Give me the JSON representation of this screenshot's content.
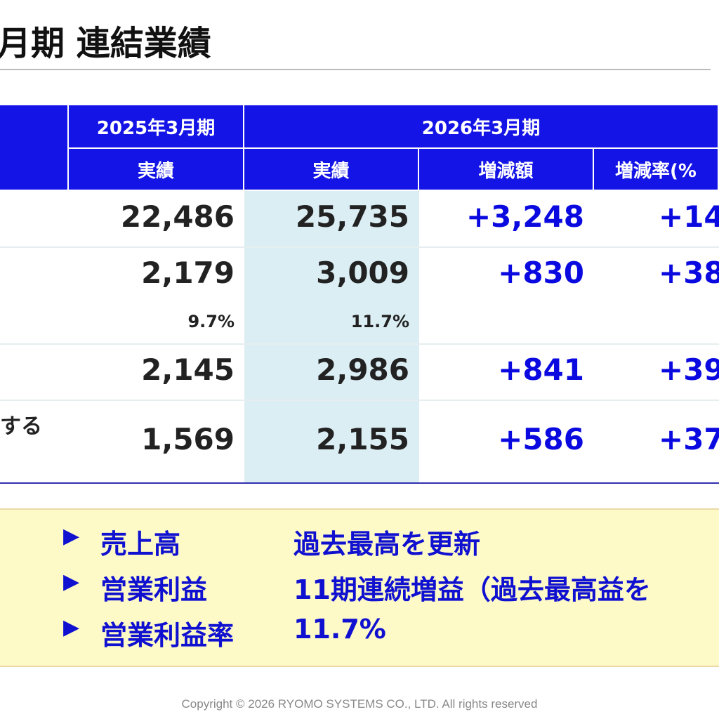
{
  "title": "月期 連結業績",
  "table": {
    "header": {
      "fy2025": "2025年3月期",
      "fy2026": "2026年3月期",
      "subheaders": [
        "実績",
        "実績",
        "増減額",
        "増減率(%"
      ]
    },
    "rows": [
      {
        "cells": [
          "22,486",
          "25,735",
          "+3,248",
          "+14"
        ]
      },
      {
        "cells": [
          "2,179",
          "3,009",
          "+830",
          "+38"
        ],
        "ratios": [
          "9.7%",
          "11.7%"
        ]
      },
      {
        "cells": [
          "2,145",
          "2,986",
          "+841",
          "+39"
        ]
      },
      {
        "label": "する",
        "cells": [
          "1,569",
          "2,155",
          "+586",
          "+37"
        ]
      }
    ]
  },
  "highlights": [
    {
      "label": "売上高",
      "text": "過去最高を更新"
    },
    {
      "label": "営業利益",
      "text": "11期連続増益（過去最高益を"
    },
    {
      "label": "営業利益率",
      "text": "11.7%"
    }
  ],
  "footer": "Copyright © 2026 RYOMO  SYSTEMS CO., LTD. All rights reserved"
}
